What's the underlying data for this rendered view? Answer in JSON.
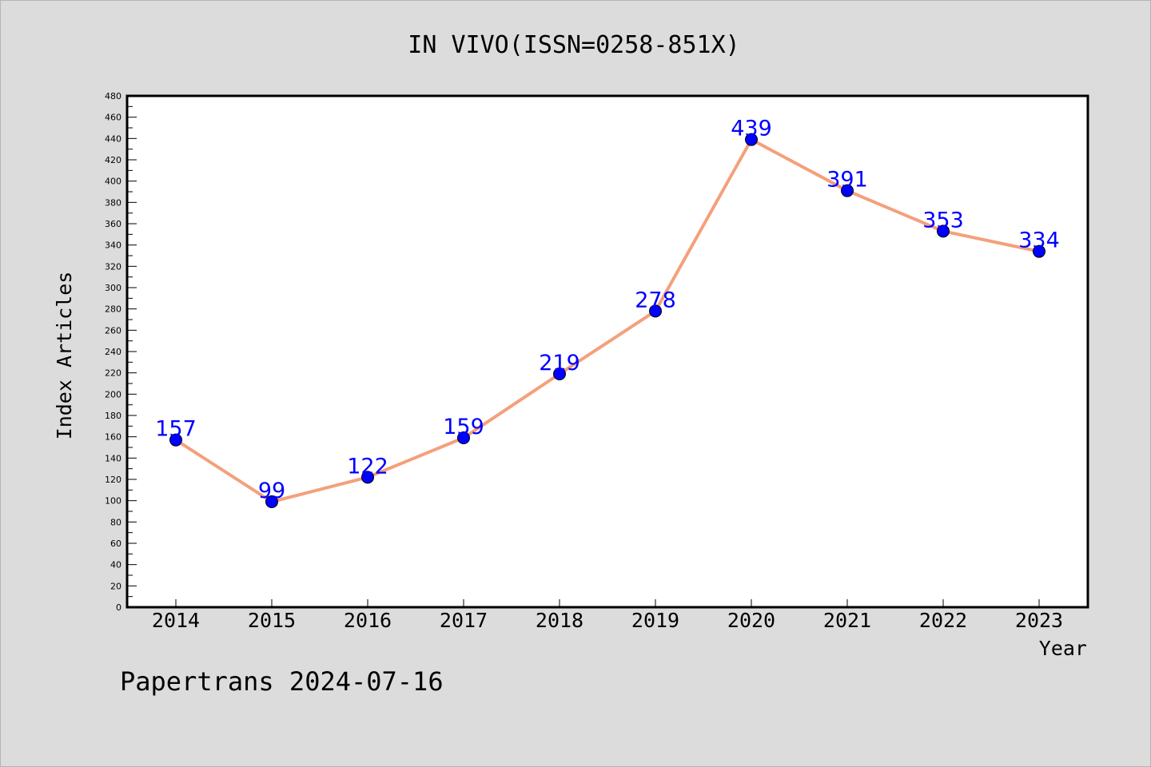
{
  "footer": {
    "text": "Papertrans 2024-07-16"
  },
  "chart_data": {
    "type": "line",
    "title": "IN VIVO(ISSN=0258-851X)",
    "xlabel": "Year",
    "ylabel": "Index Articles",
    "categories": [
      "2014",
      "2015",
      "2016",
      "2017",
      "2018",
      "2019",
      "2020",
      "2021",
      "2022",
      "2023"
    ],
    "series": [
      {
        "values": [
          157,
          99,
          122,
          159,
          219,
          278,
          439,
          391,
          353,
          334
        ]
      }
    ],
    "ylim": [
      0,
      480
    ],
    "y_major_step": 20,
    "y_ticks": [
      "0",
      "20",
      "40",
      "60",
      "80",
      "100",
      "120",
      "140",
      "160",
      "180",
      "200",
      "220",
      "240",
      "260",
      "280",
      "300",
      "320",
      "340",
      "360",
      "380",
      "400",
      "420",
      "440",
      "460",
      "480"
    ],
    "grid": false,
    "data_labels": true,
    "colors": {
      "line": "#f4a07c",
      "marker": "#0000ff",
      "data_label": "#0000ff",
      "plot_background": "#ffffff",
      "page_background": "#dcdcdc"
    }
  }
}
